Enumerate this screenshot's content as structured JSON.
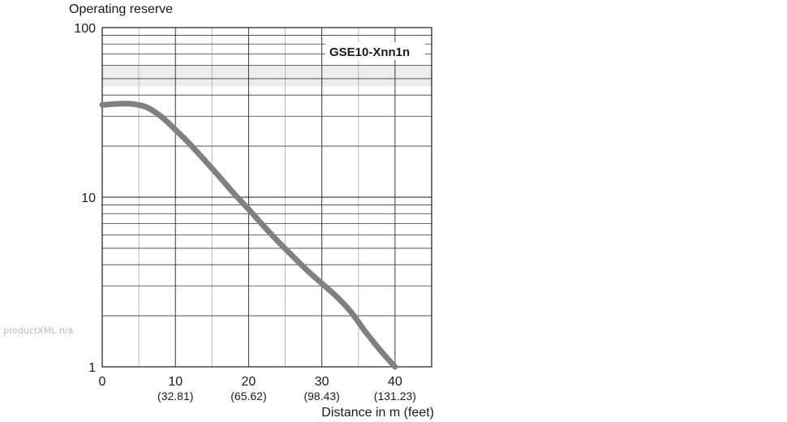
{
  "chart_data": {
    "type": "line",
    "title": "",
    "ylabel": "Operating reserve",
    "xlabel": "Distance in m (feet)",
    "x_scale": "linear",
    "y_scale": "log",
    "xlim": [
      0,
      45
    ],
    "ylim": [
      1,
      100
    ],
    "grid": true,
    "x_ticks": [
      {
        "value": 0,
        "label": "0",
        "sublabel": ""
      },
      {
        "value": 10,
        "label": "10",
        "sublabel": "(32.81)"
      },
      {
        "value": 20,
        "label": "20",
        "sublabel": "(65.62)"
      },
      {
        "value": 30,
        "label": "30",
        "sublabel": "(98.43)"
      },
      {
        "value": 40,
        "label": "40",
        "sublabel": "(131.23)"
      }
    ],
    "y_ticks": [
      {
        "value": 1,
        "label": "1"
      },
      {
        "value": 10,
        "label": "10"
      },
      {
        "value": 100,
        "label": "100"
      }
    ],
    "series": [
      {
        "name": "GSE10-Xnn1n",
        "x": [
          0,
          2,
          4,
          6,
          8,
          10,
          12,
          14,
          16,
          18,
          20,
          22,
          24,
          26,
          28,
          30,
          32,
          34,
          36,
          38,
          40
        ],
        "y": [
          35,
          35.5,
          35.5,
          34,
          30,
          25,
          20.5,
          16.5,
          13.2,
          10.5,
          8.5,
          6.8,
          5.5,
          4.5,
          3.7,
          3.1,
          2.6,
          2.1,
          1.6,
          1.25,
          1.0
        ]
      }
    ],
    "series_color": "#808080",
    "label_position": "top-right"
  },
  "side_note": "productXML n/a"
}
